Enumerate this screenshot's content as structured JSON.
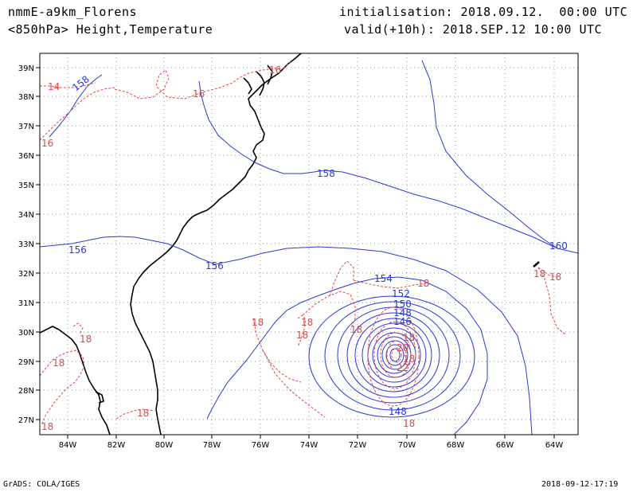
{
  "header": {
    "model": "nmmE-a9km_Florens",
    "field": "<850hPa> Height,Temperature",
    "init": "initialisation: 2018.09.12.  00:00 UTC",
    "valid": "valid(+10h): 2018.SEP.12 10:00 UTC"
  },
  "footer": {
    "left": "GrADS: COLA/IGES",
    "right": "2018-09-12-17:19"
  },
  "map": {
    "lat_labels": [
      "39N",
      "38N",
      "37N",
      "36N",
      "35N",
      "34N",
      "33N",
      "32N",
      "31N",
      "30N",
      "29N",
      "28N",
      "27N"
    ],
    "lon_labels": [
      "84W",
      "82W",
      "80W",
      "78W",
      "76W",
      "74W",
      "72W",
      "70W",
      "68W",
      "66W",
      "64W"
    ],
    "colors": {
      "height": "#2a3ad8",
      "temperature": "#e04848",
      "coast": "#000000",
      "grid": "#999999"
    },
    "height_labels": [
      "158",
      "158",
      "156",
      "156",
      "160",
      "154",
      "152",
      "150",
      "148",
      "146",
      "148"
    ],
    "temp_labels": [
      "14",
      "16",
      "16",
      "16",
      "18",
      "18",
      "18",
      "18",
      "18",
      "18",
      "18",
      "18",
      "18",
      "18",
      "18",
      "18",
      "20",
      "22",
      "18",
      "18"
    ]
  }
}
